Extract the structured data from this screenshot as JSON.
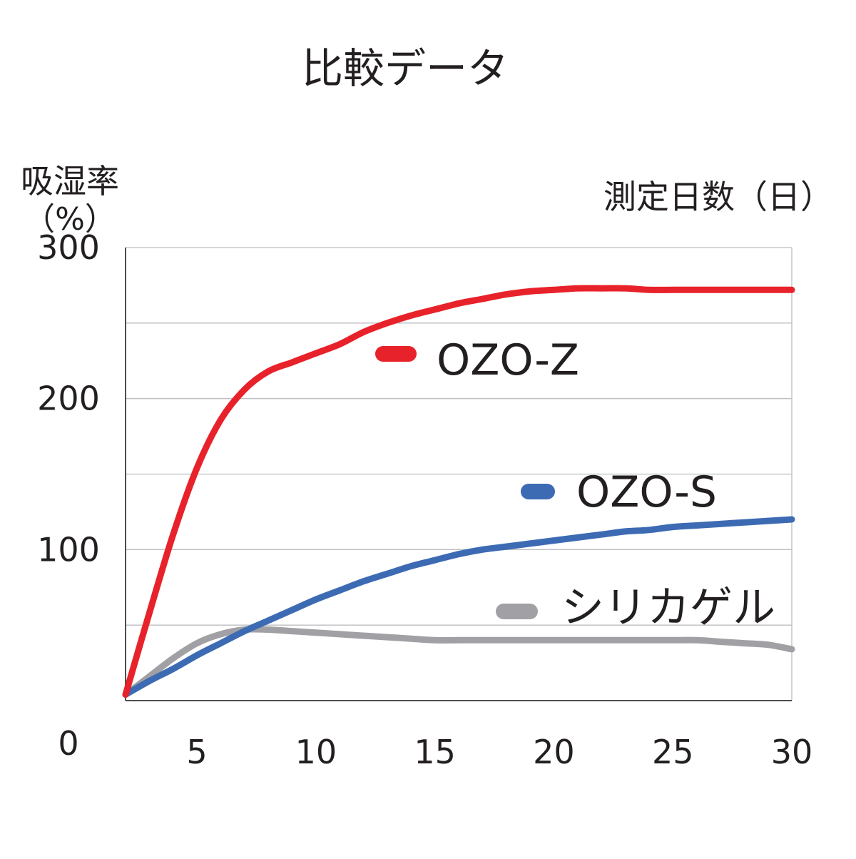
{
  "chart_data": {
    "type": "line",
    "title": "比較データ",
    "ylabel_line1": "吸湿率",
    "ylabel_line2": "（%）",
    "xlabel": "測定日数（日）",
    "origin_label": "0",
    "xlim": [
      2,
      30
    ],
    "ylim": [
      0,
      300
    ],
    "x_ticks": [
      5,
      10,
      15,
      20,
      25,
      30
    ],
    "y_tick_labels": [
      100,
      200,
      300
    ],
    "grid_lines": [
      50,
      100,
      150,
      200,
      250
    ],
    "grid": true,
    "series": [
      {
        "name": "OZO-Z",
        "color": "#e8222a",
        "x": [
          2,
          3,
          4,
          5,
          6,
          7,
          8,
          9,
          10,
          11,
          12,
          13,
          14,
          15,
          16,
          17,
          18,
          19,
          20,
          21,
          22,
          23,
          24,
          25,
          26,
          27,
          28,
          29,
          30
        ],
        "y": [
          4,
          58,
          110,
          154,
          186,
          206,
          218,
          224,
          230,
          236,
          244,
          250,
          255,
          259,
          263,
          266,
          269,
          271,
          272,
          273,
          273,
          273,
          272,
          272,
          272,
          272,
          272,
          272,
          272
        ]
      },
      {
        "name": "OZO-S",
        "color": "#3d6bb3",
        "x": [
          2,
          3,
          4,
          5,
          6,
          7,
          8,
          9,
          10,
          11,
          12,
          13,
          14,
          15,
          16,
          17,
          18,
          19,
          20,
          21,
          22,
          23,
          24,
          25,
          26,
          27,
          28,
          29,
          30
        ],
        "y": [
          4,
          13,
          21,
          30,
          38,
          46,
          53,
          60,
          67,
          73,
          79,
          84,
          89,
          93,
          97,
          100,
          102,
          104,
          106,
          108,
          110,
          112,
          113,
          115,
          116,
          117,
          118,
          119,
          120
        ]
      },
      {
        "name": "シリカゲル",
        "color": "#a1a1a5",
        "x": [
          2,
          3,
          4,
          5,
          6,
          7,
          8,
          9,
          10,
          11,
          12,
          13,
          14,
          15,
          16,
          17,
          18,
          19,
          20,
          21,
          22,
          23,
          24,
          25,
          26,
          27,
          28,
          29,
          30
        ],
        "y": [
          4,
          16,
          28,
          38,
          44,
          47,
          47,
          46,
          45,
          44,
          43,
          42,
          41,
          40,
          40,
          40,
          40,
          40,
          40,
          40,
          40,
          40,
          40,
          40,
          40,
          39,
          38,
          37,
          34
        ]
      }
    ],
    "legend": [
      {
        "label": "OZO-Z",
        "color": "#e8222a"
      },
      {
        "label": "OZO-S",
        "color": "#3d6bb3"
      },
      {
        "label": "シリカゲル",
        "color": "#a1a1a5"
      }
    ]
  }
}
